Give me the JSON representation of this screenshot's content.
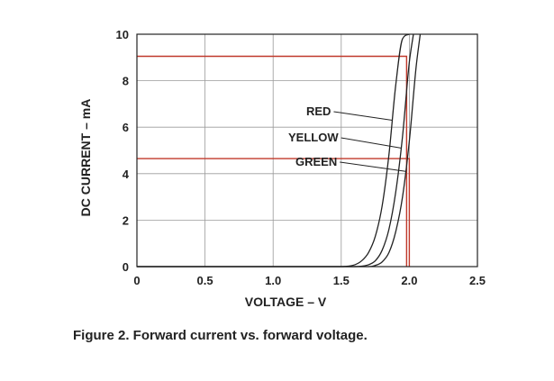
{
  "caption": "Figure 2. Forward current vs. forward voltage.",
  "chart_data": {
    "type": "line",
    "xlabel": "VOLTAGE – V",
    "ylabel": "DC CURRENT – mA",
    "xlim": [
      0,
      2.5
    ],
    "ylim": [
      0,
      10
    ],
    "x_ticks": [
      "0",
      "0.5",
      "1.0",
      "1.5",
      "2.0",
      "2.5"
    ],
    "y_ticks": [
      "0",
      "2",
      "4",
      "6",
      "8",
      "10"
    ],
    "grid": true,
    "series": [
      {
        "name": "RED",
        "color": "#222222",
        "x": [
          0,
          1.5,
          1.55,
          1.6,
          1.65,
          1.7,
          1.75,
          1.8,
          1.85,
          1.9,
          1.95,
          2.0
        ],
        "y": [
          0,
          0.0,
          0.02,
          0.08,
          0.25,
          0.6,
          1.3,
          2.6,
          4.8,
          7.8,
          9.8,
          10.0
        ]
      },
      {
        "name": "YELLOW",
        "color": "#222222",
        "x": [
          0,
          1.6,
          1.65,
          1.7,
          1.75,
          1.8,
          1.85,
          1.9,
          1.95,
          2.0,
          2.03
        ],
        "y": [
          0,
          0.0,
          0.02,
          0.08,
          0.25,
          0.7,
          1.6,
          3.2,
          5.6,
          8.8,
          10.0
        ]
      },
      {
        "name": "GREEN",
        "color": "#222222",
        "x": [
          0,
          1.7,
          1.75,
          1.8,
          1.85,
          1.9,
          1.95,
          2.0,
          2.05,
          2.08
        ],
        "y": [
          0,
          0.0,
          0.05,
          0.2,
          0.6,
          1.5,
          3.0,
          5.4,
          8.6,
          10.0
        ]
      }
    ],
    "reference_lines": [
      {
        "color": "#c0392b",
        "points": [
          [
            0,
            9.05
          ],
          [
            1.98,
            9.05
          ],
          [
            1.98,
            0
          ]
        ]
      },
      {
        "color": "#c0392b",
        "points": [
          [
            0,
            4.65
          ],
          [
            2.0,
            4.65
          ],
          [
            2.0,
            0
          ]
        ]
      }
    ]
  }
}
